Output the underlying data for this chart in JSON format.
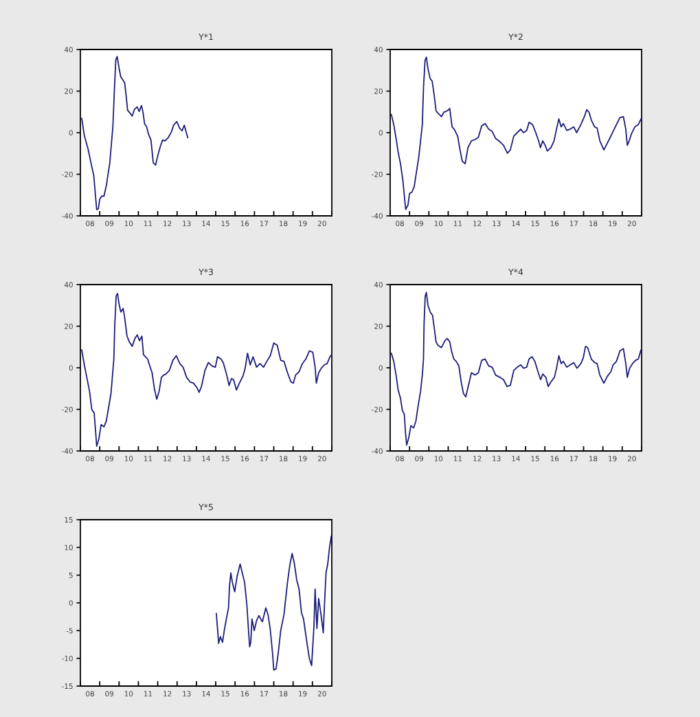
{
  "chart_data": [
    {
      "type": "line",
      "title": "Y*1",
      "color": "#1c1c7a",
      "xlim": [
        "2008-01-01",
        "2021-01-01"
      ],
      "ylim": [
        -40,
        40
      ],
      "yticks": [
        -40,
        -20,
        0,
        20,
        40
      ],
      "xticks": [
        {
          "value": "2008-01-01",
          "label": null
        },
        {
          "value": "2009-01-01",
          "label": null
        },
        {
          "value": "2010-01-01",
          "label": null
        },
        {
          "value": "2011-01-01",
          "label": null
        },
        {
          "value": "2012-01-01",
          "label": null
        },
        {
          "value": "2013-01-01",
          "label": null
        },
        {
          "value": "2014-01-01",
          "label": null
        },
        {
          "value": "2015-01-01",
          "label": null
        },
        {
          "value": "2016-01-01",
          "label": null
        },
        {
          "value": "2017-01-01",
          "label": null
        },
        {
          "value": "2018-01-01",
          "label": null
        },
        {
          "value": "2019-01-01",
          "label": null
        },
        {
          "value": "2020-01-01",
          "label": null
        },
        {
          "value": "2021-01-01",
          "label": null
        },
        {
          "value": "2008-07-01",
          "label": "08"
        },
        {
          "value": "2009-07-01",
          "label": "09"
        },
        {
          "value": "2010-07-01",
          "label": "10"
        },
        {
          "value": "2011-07-01",
          "label": "11"
        },
        {
          "value": "2012-07-01",
          "label": "12"
        },
        {
          "value": "2013-07-01",
          "label": "13"
        },
        {
          "value": "2014-07-01",
          "label": "14"
        },
        {
          "value": "2015-07-01",
          "label": "15"
        },
        {
          "value": "2016-07-01",
          "label": "16"
        },
        {
          "value": "2017-07-01",
          "label": "17"
        },
        {
          "value": "2018-07-01",
          "label": "18"
        },
        {
          "value": "2019-07-01",
          "label": "19"
        },
        {
          "value": "2020-07-01",
          "label": "20"
        }
      ],
      "x": [
        "2008-01-27",
        "2008-03-15",
        "2008-05-27",
        "2008-07-28",
        "2008-09-10",
        "2008-10-13",
        "2008-11-04",
        "2008-12-06",
        "2009-01-01",
        "2009-02-07",
        "2009-03-22",
        "2009-05-05",
        "2009-06-03",
        "2009-07-10",
        "2009-08-08",
        "2009-09-06",
        "2009-10-05",
        "2009-10-31",
        "2009-11-26",
        "2010-01-01",
        "2010-02-03",
        "2010-03-08",
        "2010-04-17",
        "2010-05-16",
        "2010-06-11",
        "2010-07-17",
        "2010-09-06",
        "2010-10-20",
        "2010-12-10",
        "2011-01-16",
        "2011-02-28",
        "2011-03-30",
        "2011-04-28",
        "2011-06-03",
        "2011-07-13",
        "2011-08-26",
        "2011-10-09",
        "2011-11-22",
        "2012-01-01",
        "2012-02-17",
        "2012-04-02",
        "2012-05-16",
        "2012-07-17",
        "2012-09-14",
        "2012-10-27",
        "2012-12-25",
        "2013-02-21",
        "2013-04-06",
        "2013-05-16",
        "2013-07-21"
      ],
      "values": [
        6.9,
        -1.3,
        -8,
        -15.6,
        -20.6,
        -30.5,
        -37,
        -36.5,
        -32,
        -30.5,
        -30.5,
        -25.5,
        -20.6,
        -14.5,
        -5.7,
        3,
        20.7,
        35,
        36.6,
        31,
        26.7,
        25.6,
        24,
        17.4,
        10.8,
        9.7,
        8,
        11.3,
        12.4,
        10.2,
        13,
        9.7,
        4.2,
        3,
        -0.8,
        -3.5,
        -14.5,
        -15.6,
        -11.2,
        -6.8,
        -3.5,
        -4,
        -2.4,
        0.3,
        3.6,
        5.3,
        2,
        0.9,
        3.6,
        -2.4
      ]
    },
    {
      "type": "line",
      "title": "Y*2",
      "color": "#1c1c7a",
      "xlim": [
        "2008-01-01",
        "2021-01-01"
      ],
      "ylim": [
        -40,
        40
      ],
      "yticks": [
        -40,
        -20,
        0,
        20,
        40
      ],
      "xticks": [
        {
          "value": "2008-01-01",
          "label": null
        },
        {
          "value": "2009-01-01",
          "label": null
        },
        {
          "value": "2010-01-01",
          "label": null
        },
        {
          "value": "2011-01-01",
          "label": null
        },
        {
          "value": "2012-01-01",
          "label": null
        },
        {
          "value": "2013-01-01",
          "label": null
        },
        {
          "value": "2014-01-01",
          "label": null
        },
        {
          "value": "2015-01-01",
          "label": null
        },
        {
          "value": "2016-01-01",
          "label": null
        },
        {
          "value": "2017-01-01",
          "label": null
        },
        {
          "value": "2018-01-01",
          "label": null
        },
        {
          "value": "2019-01-01",
          "label": null
        },
        {
          "value": "2020-01-01",
          "label": null
        },
        {
          "value": "2021-01-01",
          "label": null
        },
        {
          "value": "2008-07-01",
          "label": "08"
        },
        {
          "value": "2009-07-01",
          "label": "09"
        },
        {
          "value": "2010-07-01",
          "label": "10"
        },
        {
          "value": "2011-07-01",
          "label": "11"
        },
        {
          "value": "2012-07-01",
          "label": "12"
        },
        {
          "value": "2013-07-01",
          "label": "13"
        },
        {
          "value": "2014-07-01",
          "label": "14"
        },
        {
          "value": "2015-07-01",
          "label": "15"
        },
        {
          "value": "2016-07-01",
          "label": "16"
        },
        {
          "value": "2017-07-01",
          "label": "17"
        },
        {
          "value": "2018-07-01",
          "label": "18"
        },
        {
          "value": "2019-07-01",
          "label": "19"
        },
        {
          "value": "2020-07-01",
          "label": "20"
        }
      ],
      "x": [
        "2008-01-23",
        "2008-03-08",
        "2008-04-21",
        "2008-05-31",
        "2008-07-13",
        "2008-08-26",
        "2008-09-24",
        "2008-10-20",
        "2008-12-03",
        "2009-01-01",
        "2009-02-14",
        "2009-03-30",
        "2009-05-12",
        "2009-06-25",
        "2009-07-28",
        "2009-08-30",
        "2009-09-21",
        "2009-10-20",
        "2009-11-15",
        "2009-12-14",
        "2010-01-27",
        "2010-03-04",
        "2010-04-10",
        "2010-05-16",
        "2010-06-22",
        "2010-08-26",
        "2010-10-13",
        "2010-12-14",
        "2011-01-30",
        "2011-03-15",
        "2011-04-24",
        "2011-06-29",
        "2011-08-12",
        "2011-09-24",
        "2011-11-18",
        "2012-01-08",
        "2012-03-15",
        "2012-05-20",
        "2012-07-24",
        "2012-09-24",
        "2012-11-29",
        "2013-02-03",
        "2013-04-10",
        "2013-06-14",
        "2013-09-06",
        "2013-11-11",
        "2014-01-23",
        "2014-03-19",
        "2014-05-23",
        "2014-07-28",
        "2014-10-02",
        "2014-11-22",
        "2015-01-23",
        "2015-03-08",
        "2015-05-12",
        "2015-07-13",
        "2015-09-10",
        "2015-10-09",
        "2015-11-22",
        "2016-01-06",
        "2016-02-17",
        "2016-04-24",
        "2016-06-22",
        "2016-08-08",
        "2016-09-21",
        "2016-11-04",
        "2016-12-14",
        "2017-02-17",
        "2017-04-24",
        "2017-06-29",
        "2017-08-23",
        "2017-11-11",
        "2018-01-16",
        "2018-02-28",
        "2018-04-13",
        "2018-05-27",
        "2018-07-28",
        "2018-09-14",
        "2018-11-04",
        "2019-01-19",
        "2019-03-04",
        "2019-05-09",
        "2019-07-13",
        "2019-09-14",
        "2019-11-18",
        "2020-01-23",
        "2020-03-08",
        "2020-04-06",
        "2020-05-12",
        "2020-06-22",
        "2020-08-26",
        "2020-10-31",
        "2020-12-21"
      ],
      "values": [
        8.8,
        3.9,
        -2.8,
        -9.4,
        -14.9,
        -22.6,
        -30.3,
        -36.9,
        -34.7,
        -29.2,
        -28.6,
        -25.9,
        -18.7,
        -11.6,
        -3.9,
        3.9,
        21.5,
        34.7,
        36.3,
        30.8,
        25.9,
        24.8,
        18.2,
        10.5,
        9.4,
        7.7,
        9.9,
        10.5,
        11.6,
        2.8,
        1.7,
        -1.7,
        -8.3,
        -13.8,
        -14.9,
        -7.2,
        -3.9,
        -3.3,
        -2.2,
        3.3,
        4.4,
        1.7,
        0.6,
        -2.8,
        -4.4,
        -6.1,
        -9.9,
        -8.3,
        -1.7,
        0,
        1.7,
        0,
        1.1,
        5,
        3.9,
        0,
        -4.4,
        -7.2,
        -3.9,
        -6.1,
        -8.8,
        -7.2,
        -3.9,
        1.7,
        6.6,
        2.8,
        4.4,
        1.1,
        1.7,
        2.8,
        0,
        3.9,
        7.7,
        11,
        9.9,
        6.1,
        2.8,
        2.2,
        -3.9,
        -8.3,
        -6.1,
        -2.8,
        0.6,
        3.9,
        7.2,
        7.7,
        1.7,
        -6.1,
        -3.9,
        -0.6,
        2.8,
        3.9,
        6.6
      ]
    },
    {
      "type": "line",
      "title": "Y*3",
      "color": "#1c1c7a",
      "xlim": [
        "2008-01-01",
        "2021-01-01"
      ],
      "ylim": [
        -40,
        40
      ],
      "yticks": [
        -40,
        -20,
        0,
        20,
        40
      ],
      "xticks": [
        {
          "value": "2008-01-01",
          "label": null
        },
        {
          "value": "2009-01-01",
          "label": null
        },
        {
          "value": "2010-01-01",
          "label": null
        },
        {
          "value": "2011-01-01",
          "label": null
        },
        {
          "value": "2012-01-01",
          "label": null
        },
        {
          "value": "2013-01-01",
          "label": null
        },
        {
          "value": "2014-01-01",
          "label": null
        },
        {
          "value": "2015-01-01",
          "label": null
        },
        {
          "value": "2016-01-01",
          "label": null
        },
        {
          "value": "2017-01-01",
          "label": null
        },
        {
          "value": "2018-01-01",
          "label": null
        },
        {
          "value": "2019-01-01",
          "label": null
        },
        {
          "value": "2020-01-01",
          "label": null
        },
        {
          "value": "2021-01-01",
          "label": null
        },
        {
          "value": "2008-07-01",
          "label": "08"
        },
        {
          "value": "2009-07-01",
          "label": "09"
        },
        {
          "value": "2010-07-01",
          "label": "10"
        },
        {
          "value": "2011-07-01",
          "label": "11"
        },
        {
          "value": "2012-07-01",
          "label": "12"
        },
        {
          "value": "2013-07-01",
          "label": "13"
        },
        {
          "value": "2014-07-01",
          "label": "14"
        },
        {
          "value": "2015-07-01",
          "label": "15"
        },
        {
          "value": "2016-07-01",
          "label": "16"
        },
        {
          "value": "2017-07-01",
          "label": "17"
        },
        {
          "value": "2018-07-01",
          "label": "18"
        },
        {
          "value": "2019-07-01",
          "label": "19"
        },
        {
          "value": "2020-07-01",
          "label": "20"
        }
      ],
      "x": [
        "2008-01-27",
        "2008-03-19",
        "2008-05-01",
        "2008-06-22",
        "2008-08-04",
        "2008-09-17",
        "2008-10-13",
        "2008-11-04",
        "2008-12-14",
        "2009-01-27",
        "2009-03-22",
        "2009-05-05",
        "2009-06-18",
        "2009-08-01",
        "2009-08-30",
        "2009-09-24",
        "2009-10-13",
        "2009-11-07",
        "2009-12-03",
        "2010-01-01",
        "2010-02-03",
        "2010-03-19",
        "2010-04-17",
        "2010-05-31",
        "2010-07-13",
        "2010-09-06",
        "2010-10-27",
        "2010-12-10",
        "2011-01-23",
        "2011-03-08",
        "2011-04-06",
        "2011-05-12",
        "2011-06-25",
        "2011-08-04",
        "2011-09-17",
        "2011-10-31",
        "2011-12-14",
        "2012-01-27",
        "2012-03-11",
        "2012-04-24",
        "2012-06-03",
        "2012-08-08",
        "2012-10-13",
        "2012-12-17",
        "2013-02-21",
        "2013-04-24",
        "2013-06-29",
        "2013-09-03",
        "2013-11-07",
        "2014-01-12",
        "2014-02-21",
        "2014-04-06",
        "2014-06-11",
        "2014-08-15",
        "2014-10-20",
        "2014-12-25",
        "2015-02-03",
        "2015-04-10",
        "2015-05-23",
        "2015-07-28",
        "2015-09-10",
        "2015-10-24",
        "2015-12-03",
        "2016-01-27",
        "2016-03-22",
        "2016-05-27",
        "2016-07-10",
        "2016-08-23",
        "2016-10-13",
        "2016-12-06",
        "2017-02-10",
        "2017-04-17",
        "2017-06-22",
        "2017-08-23",
        "2017-10-27",
        "2018-01-01",
        "2018-03-08",
        "2018-05-12",
        "2018-07-13",
        "2018-09-17",
        "2018-11-22",
        "2019-01-06",
        "2019-02-17",
        "2019-04-24",
        "2019-06-25",
        "2019-08-30",
        "2019-11-04",
        "2020-01-08",
        "2020-02-21",
        "2020-03-15",
        "2020-04-28",
        "2020-06-18",
        "2020-08-12",
        "2020-10-05",
        "2020-12-06"
      ],
      "values": [
        8.6,
        0.9,
        -4.6,
        -11.3,
        -20.1,
        -21.7,
        -30,
        -37.7,
        -34.4,
        -27.3,
        -28.4,
        -25.6,
        -19,
        -12.4,
        -3.5,
        4.2,
        21.3,
        34.5,
        35.7,
        30.7,
        26.8,
        28.5,
        24.1,
        15.2,
        12.5,
        10.3,
        14.1,
        15.8,
        13,
        15.2,
        6.4,
        5.3,
        4.2,
        0.9,
        -2.4,
        -10.2,
        -15.1,
        -11.3,
        -4.6,
        -3.5,
        -3,
        -1.3,
        3.6,
        5.8,
        2,
        0.3,
        -4.6,
        -6.8,
        -7.4,
        -9.6,
        -11.8,
        -9,
        -1.3,
        2.5,
        0.9,
        0.3,
        5.3,
        4.2,
        2.5,
        -3.5,
        -8.5,
        -5.2,
        -5.7,
        -10.7,
        -7.4,
        -4.1,
        -0.2,
        7,
        1.4,
        5.3,
        0.3,
        2,
        0.3,
        3.1,
        5.8,
        11.9,
        10.8,
        3.6,
        3.1,
        -2.4,
        -6.8,
        -7.4,
        -3.5,
        -1.9,
        2,
        4.2,
        8.1,
        7.5,
        0.3,
        -7.4,
        -2.4,
        -0.2,
        1.4,
        2,
        5.8
      ]
    },
    {
      "type": "line",
      "title": "Y*4",
      "color": "#1c1c7a",
      "xlim": [
        "2008-01-01",
        "2021-01-01"
      ],
      "ylim": [
        -40,
        40
      ],
      "yticks": [
        -40,
        -20,
        0,
        20,
        40
      ],
      "xticks": [
        {
          "value": "2008-01-01",
          "label": null
        },
        {
          "value": "2009-01-01",
          "label": null
        },
        {
          "value": "2010-01-01",
          "label": null
        },
        {
          "value": "2011-01-01",
          "label": null
        },
        {
          "value": "2012-01-01",
          "label": null
        },
        {
          "value": "2013-01-01",
          "label": null
        },
        {
          "value": "2014-01-01",
          "label": null
        },
        {
          "value": "2015-01-01",
          "label": null
        },
        {
          "value": "2016-01-01",
          "label": null
        },
        {
          "value": "2017-01-01",
          "label": null
        },
        {
          "value": "2018-01-01",
          "label": null
        },
        {
          "value": "2019-01-01",
          "label": null
        },
        {
          "value": "2020-01-01",
          "label": null
        },
        {
          "value": "2021-01-01",
          "label": null
        },
        {
          "value": "2008-07-01",
          "label": "08"
        },
        {
          "value": "2009-07-01",
          "label": "09"
        },
        {
          "value": "2010-07-01",
          "label": "10"
        },
        {
          "value": "2011-07-01",
          "label": "11"
        },
        {
          "value": "2012-07-01",
          "label": "12"
        },
        {
          "value": "2013-07-01",
          "label": "13"
        },
        {
          "value": "2014-07-01",
          "label": "14"
        },
        {
          "value": "2015-07-01",
          "label": "15"
        },
        {
          "value": "2016-07-01",
          "label": "16"
        },
        {
          "value": "2017-07-01",
          "label": "17"
        },
        {
          "value": "2018-07-01",
          "label": "18"
        },
        {
          "value": "2019-07-01",
          "label": "19"
        },
        {
          "value": "2020-07-01",
          "label": "20"
        }
      ],
      "x": [
        "2008-01-23",
        "2008-03-08",
        "2008-04-21",
        "2008-05-31",
        "2008-07-13",
        "2008-08-19",
        "2008-09-24",
        "2008-10-16",
        "2008-11-07",
        "2008-12-14",
        "2009-01-27",
        "2009-03-19",
        "2009-05-01",
        "2009-06-11",
        "2009-07-28",
        "2009-08-30",
        "2009-09-21",
        "2009-10-02",
        "2009-10-24",
        "2009-11-15",
        "2009-12-14",
        "2010-01-27",
        "2010-03-11",
        "2010-04-10",
        "2010-05-16",
        "2010-06-22",
        "2010-08-26",
        "2010-10-31",
        "2010-12-14",
        "2011-01-30",
        "2011-03-04",
        "2011-04-17",
        "2011-05-31",
        "2011-07-21",
        "2011-09-03",
        "2011-10-16",
        "2011-11-29",
        "2012-01-08",
        "2012-03-15",
        "2012-05-20",
        "2012-07-24",
        "2012-09-24",
        "2012-11-29",
        "2013-02-03",
        "2013-04-10",
        "2013-06-14",
        "2013-09-06",
        "2013-11-11",
        "2014-01-16",
        "2014-03-19",
        "2014-05-23",
        "2014-07-28",
        "2014-10-02",
        "2014-11-22",
        "2015-01-23",
        "2015-03-08",
        "2015-05-05",
        "2015-06-25",
        "2015-08-30",
        "2015-10-13",
        "2015-11-22",
        "2016-01-19",
        "2016-03-04",
        "2016-04-24",
        "2016-06-29",
        "2016-08-08",
        "2016-09-21",
        "2016-11-04",
        "2016-12-14",
        "2017-02-17",
        "2017-04-24",
        "2017-06-29",
        "2017-08-30",
        "2017-11-11",
        "2017-12-25",
        "2018-02-07",
        "2018-03-19",
        "2018-05-27",
        "2018-07-28",
        "2018-09-14",
        "2018-11-04",
        "2019-01-19",
        "2019-03-26",
        "2019-05-31",
        "2019-07-13",
        "2019-09-14",
        "2019-11-18",
        "2020-01-23",
        "2020-03-08",
        "2020-04-06",
        "2020-05-20",
        "2020-07-13",
        "2020-09-10",
        "2020-10-31",
        "2020-12-21"
      ],
      "values": [
        7,
        3.1,
        -3.5,
        -10.7,
        -14.6,
        -20.6,
        -22.3,
        -31.1,
        -37.2,
        -33.9,
        -27.8,
        -28.9,
        -25.6,
        -18.4,
        -11.3,
        -3.5,
        4.2,
        21.3,
        34.5,
        36.2,
        30.1,
        26.8,
        25.2,
        19.6,
        12.5,
        10.8,
        9.7,
        13,
        14.1,
        12.5,
        8.1,
        4.2,
        3.1,
        0.9,
        -6.8,
        -12.4,
        -14,
        -9.6,
        -2.4,
        -3.5,
        -2.4,
        3.6,
        4.2,
        0.9,
        0.3,
        -3.5,
        -4.6,
        -5.7,
        -9,
        -8.5,
        -1.3,
        0.3,
        1.4,
        -0.2,
        0.3,
        4.2,
        5.3,
        3.1,
        -2.4,
        -5.7,
        -3,
        -4.6,
        -9,
        -6.8,
        -4.6,
        -0.2,
        5.8,
        2,
        3.1,
        0.3,
        1.4,
        2.5,
        -0.2,
        2,
        4.7,
        10.3,
        9.7,
        4.2,
        2.5,
        2,
        -3.5,
        -7.4,
        -4.1,
        -1.9,
        1.4,
        3.1,
        8.1,
        9.2,
        2,
        -4.6,
        -0.2,
        2,
        3.6,
        4.2,
        8.6
      ]
    },
    {
      "type": "line",
      "title": "Y*5",
      "color": "#1c1c7a",
      "xlim": [
        "2008-01-01",
        "2021-01-01"
      ],
      "ylim": [
        -15,
        15
      ],
      "yticks": [
        -15,
        -10,
        -5,
        0,
        5,
        10,
        15
      ],
      "xticks": [
        {
          "value": "2008-01-01",
          "label": null
        },
        {
          "value": "2009-01-01",
          "label": null
        },
        {
          "value": "2010-01-01",
          "label": null
        },
        {
          "value": "2011-01-01",
          "label": null
        },
        {
          "value": "2012-01-01",
          "label": null
        },
        {
          "value": "2013-01-01",
          "label": null
        },
        {
          "value": "2014-01-01",
          "label": null
        },
        {
          "value": "2015-01-01",
          "label": null
        },
        {
          "value": "2016-01-01",
          "label": null
        },
        {
          "value": "2017-01-01",
          "label": null
        },
        {
          "value": "2018-01-01",
          "label": null
        },
        {
          "value": "2019-01-01",
          "label": null
        },
        {
          "value": "2020-01-01",
          "label": null
        },
        {
          "value": "2021-01-01",
          "label": null
        },
        {
          "value": "2008-07-01",
          "label": "08"
        },
        {
          "value": "2009-07-01",
          "label": "09"
        },
        {
          "value": "2010-07-01",
          "label": "10"
        },
        {
          "value": "2011-07-01",
          "label": "11"
        },
        {
          "value": "2012-07-01",
          "label": "12"
        },
        {
          "value": "2013-07-01",
          "label": "13"
        },
        {
          "value": "2014-07-01",
          "label": "14"
        },
        {
          "value": "2015-07-01",
          "label": "15"
        },
        {
          "value": "2016-07-01",
          "label": "16"
        },
        {
          "value": "2017-07-01",
          "label": "17"
        },
        {
          "value": "2018-07-01",
          "label": "18"
        },
        {
          "value": "2019-07-01",
          "label": "19"
        },
        {
          "value": "2020-07-01",
          "label": "20"
        }
      ],
      "x": [
        "2015-01-12",
        "2015-02-03",
        "2015-02-25",
        "2015-03-30",
        "2015-05-09",
        "2015-06-14",
        "2015-07-28",
        "2015-08-30",
        "2015-09-17",
        "2015-10-13",
        "2015-11-11",
        "2015-12-25",
        "2016-02-07",
        "2016-03-11",
        "2016-04-06",
        "2016-05-16",
        "2016-06-29",
        "2016-08-12",
        "2016-09-14",
        "2016-10-02",
        "2016-10-24",
        "2016-11-15",
        "2016-12-28",
        "2017-02-10",
        "2017-03-26",
        "2017-05-31",
        "2017-08-04",
        "2017-09-14",
        "2017-10-27",
        "2017-12-10",
        "2018-01-01",
        "2018-02-14",
        "2018-03-30",
        "2018-05-12",
        "2018-07-13",
        "2018-09-17",
        "2018-10-31",
        "2018-12-14",
        "2019-01-27",
        "2019-03-11",
        "2019-04-24",
        "2019-06-07",
        "2019-07-17",
        "2019-09-21",
        "2019-11-04",
        "2019-12-17",
        "2020-01-30",
        "2020-02-21",
        "2020-03-26",
        "2020-04-28",
        "2020-06-11",
        "2020-07-24",
        "2020-08-15",
        "2020-09-14",
        "2020-10-16",
        "2020-11-18",
        "2020-12-21"
      ],
      "values": [
        -1.9,
        -4.6,
        -7.3,
        -6.1,
        -7.1,
        -4.8,
        -2.5,
        -0.9,
        2.9,
        5.4,
        3.7,
        2,
        4.7,
        6,
        7,
        5.4,
        3.7,
        -0.5,
        -5.4,
        -7.9,
        -7.1,
        -2.9,
        -5,
        -3.2,
        -2.3,
        -3.4,
        -0.9,
        -2.1,
        -4.8,
        -9.2,
        -12.1,
        -11.9,
        -8.8,
        -5,
        -2.1,
        3.7,
        6.8,
        8.9,
        7,
        4.1,
        2.5,
        -1.7,
        -2.9,
        -7.3,
        -10,
        -11.3,
        -4.2,
        2.5,
        -4.6,
        0.8,
        -2.1,
        -5.4,
        -0.5,
        5.4,
        7,
        9.9,
        12
      ]
    }
  ]
}
